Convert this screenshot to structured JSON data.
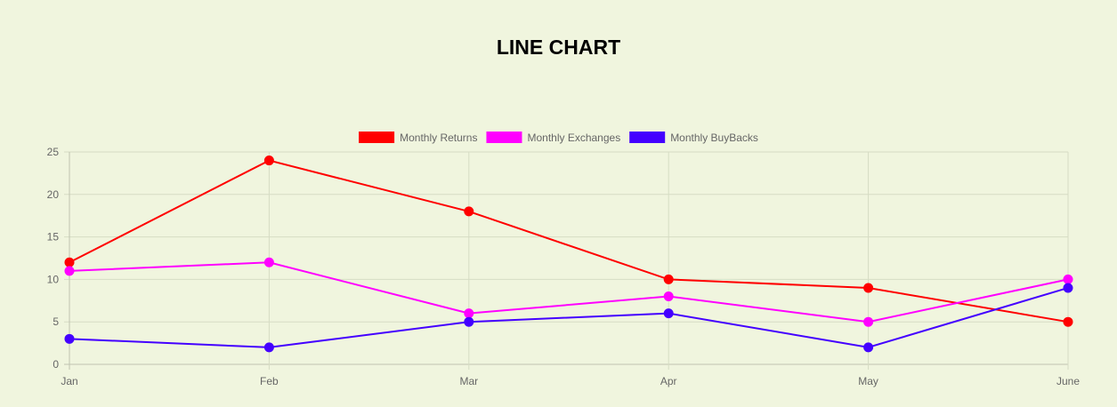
{
  "chart_data": {
    "type": "line",
    "title": "LINE CHART",
    "categories": [
      "Jan",
      "Feb",
      "Mar",
      "Apr",
      "May",
      "June"
    ],
    "ylim": [
      0,
      25
    ],
    "yticks": [
      0,
      5,
      10,
      15,
      20,
      25
    ],
    "grid": true,
    "legend_position": "top-center",
    "series": [
      {
        "name": "Monthly Returns",
        "color": "#ff0000",
        "values": [
          12,
          24,
          18,
          10,
          9,
          5
        ]
      },
      {
        "name": "Monthly Exchanges",
        "color": "#ff00ff",
        "values": [
          11,
          12,
          6,
          8,
          5,
          10
        ]
      },
      {
        "name": "Monthly BuyBacks",
        "color": "#4400ff",
        "values": [
          3,
          2,
          5,
          6,
          2,
          9
        ]
      }
    ]
  }
}
